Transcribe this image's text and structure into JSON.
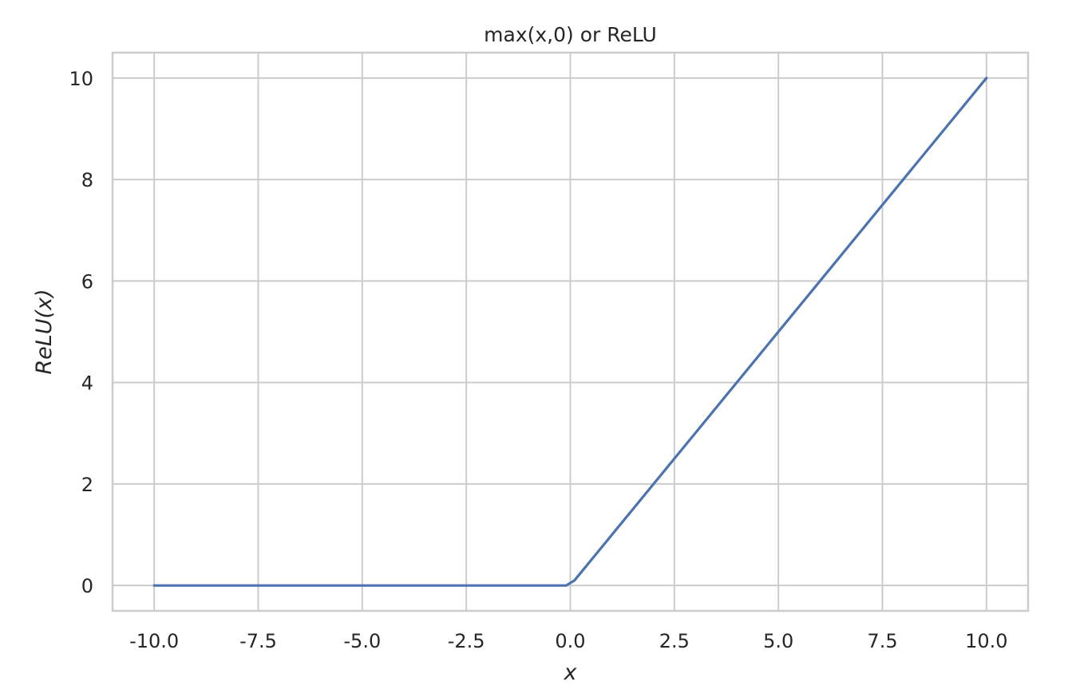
{
  "chart_data": {
    "type": "line",
    "title": "max(x,0) or ReLU",
    "xlabel": "x",
    "ylabel": "ReLU(x)",
    "xlim": [
      -11.0,
      11.0
    ],
    "ylim": [
      -0.5,
      10.5
    ],
    "grid": true,
    "x_ticks": [
      -10.0,
      -7.5,
      -5.0,
      -2.5,
      0.0,
      2.5,
      5.0,
      7.5,
      10.0
    ],
    "x_tick_labels": [
      "-10.0",
      "-7.5",
      "-5.0",
      "-2.5",
      "0.0",
      "2.5",
      "5.0",
      "7.5",
      "10.0"
    ],
    "y_ticks": [
      0,
      2,
      4,
      6,
      8,
      10
    ],
    "y_tick_labels": [
      "0",
      "2",
      "4",
      "6",
      "8",
      "10"
    ],
    "series": [
      {
        "color": "#4c72b0",
        "x": [
          -10,
          -0.1,
          0.1,
          10
        ],
        "y": [
          0,
          0,
          0.1,
          10
        ]
      }
    ],
    "colors": {
      "grid": "#cccccc",
      "spine": "#cccccc",
      "text": "#262626"
    }
  }
}
